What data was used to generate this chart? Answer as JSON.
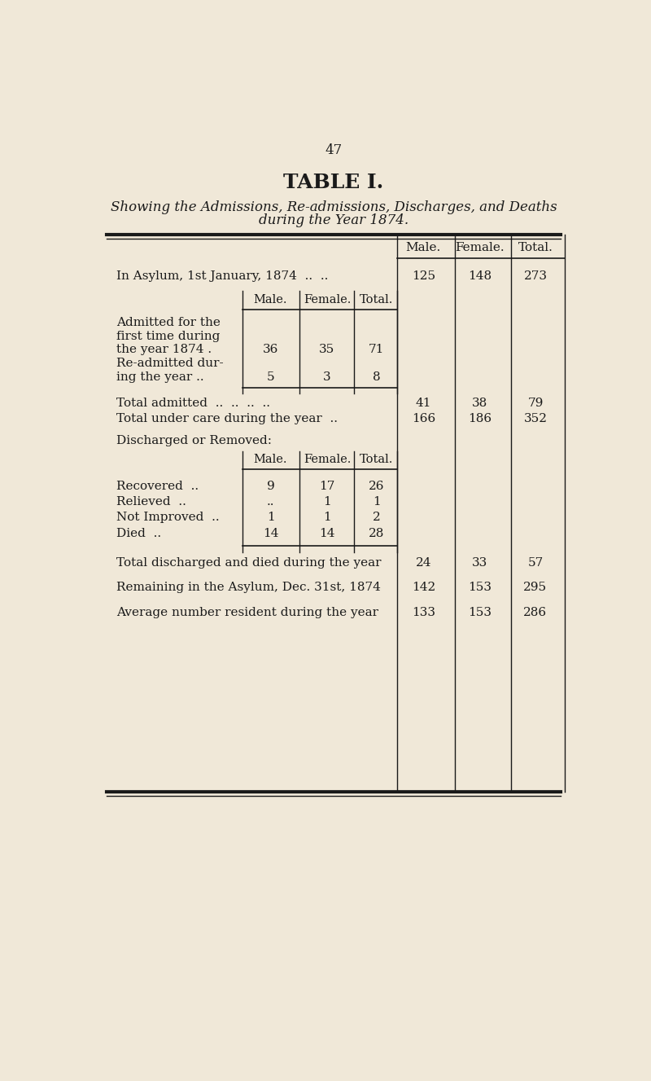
{
  "page_number": "47",
  "title": "TABLE I.",
  "subtitle_line1": "Showing the Admissions, Re-admissions, Discharges, and Deaths",
  "subtitle_line2": "during the Year 1874.",
  "bg_color": "#f0e8d8",
  "text_color": "#1a1a1a",
  "outer_col_headers": [
    "Male.",
    "Female.",
    "Total."
  ],
  "in_asylum": {
    "label": "In Asylum, 1st January, 1874  ..  ..",
    "male": "125",
    "female": "148",
    "total": "273"
  },
  "inner_col_headers": [
    "Male.",
    "Female.",
    "Total."
  ],
  "admitted_label_lines": [
    "Admitted for the",
    "first time during",
    "the year 1874 ."
  ],
  "admitted_values": [
    "36",
    "35",
    "71"
  ],
  "readmitted_label_lines": [
    "Re-admitted dur-",
    "ing the year .."
  ],
  "readmitted_values": [
    "5",
    "3",
    "8"
  ],
  "total_admitted": {
    "label": "Total admitted  ..  ..  ..  ..",
    "male": "41",
    "female": "38",
    "total": "79"
  },
  "total_under_care": {
    "label": "Total under care during the year  ..",
    "male": "166",
    "female": "186",
    "total": "352"
  },
  "discharged_header": "Discharged or Removed:",
  "discharge_col_headers": [
    "Male.",
    "Female.",
    "Total."
  ],
  "recovered": {
    "label": "Recovered  ..",
    "male": "9",
    "female": "17",
    "total": "26"
  },
  "relieved": {
    "label": "Relieved  ..",
    "male": "..",
    "female": "1",
    "total": "1"
  },
  "not_improved": {
    "label": "Not Improved  ..",
    "male": "1",
    "female": "1",
    "total": "2"
  },
  "died": {
    "label": "Died  ..",
    "male": "14",
    "female": "14",
    "total": "28"
  },
  "total_discharged": {
    "label": "Total discharged and died during the year",
    "male": "24",
    "female": "33",
    "total": "57"
  },
  "remaining": {
    "label": "Remaining in the Asylum, Dec. 31st, 1874",
    "male": "142",
    "female": "153",
    "total": "295"
  },
  "average": {
    "label": "Average number resident during the year",
    "male": "133",
    "female": "153",
    "total": "286"
  }
}
